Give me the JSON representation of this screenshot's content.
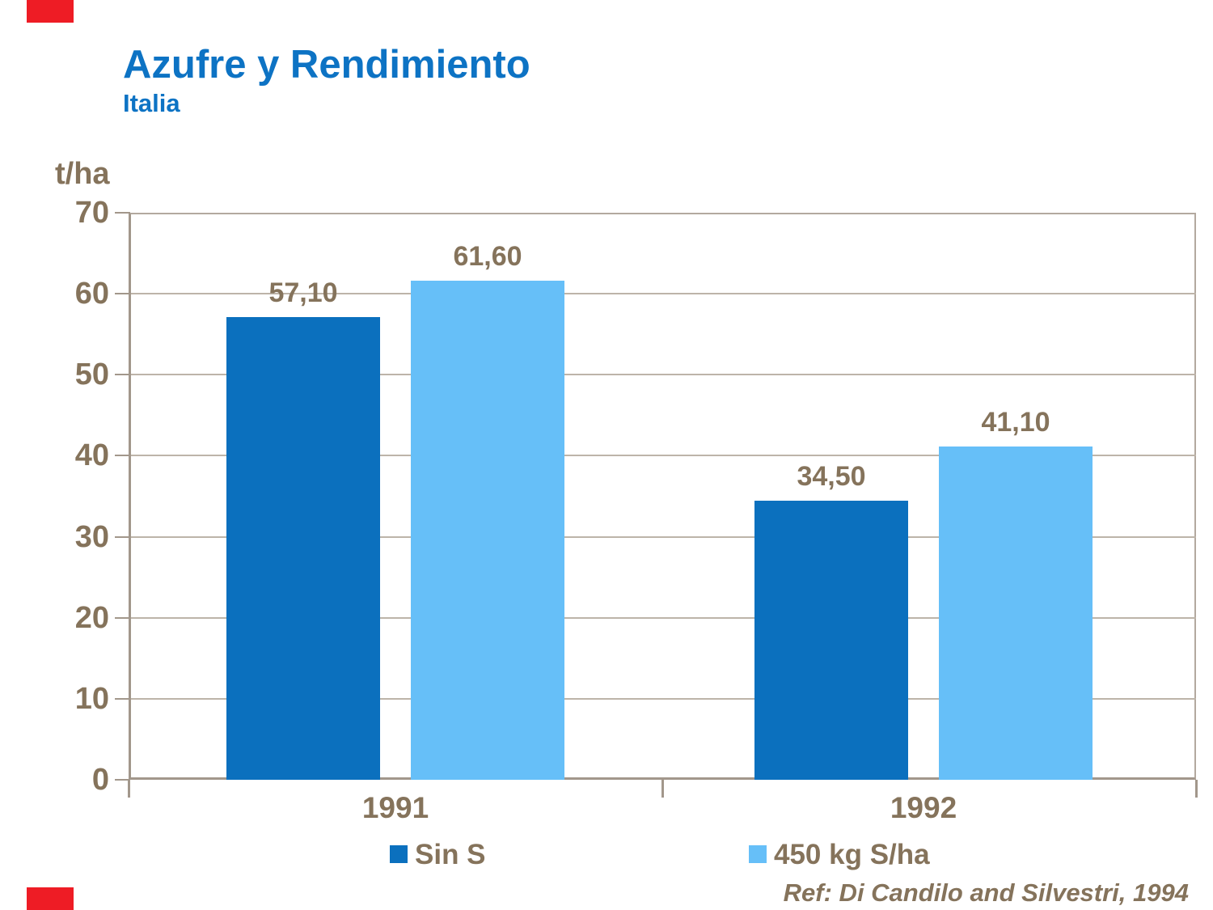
{
  "header": {
    "title": "Azufre y Rendimiento",
    "subtitle": "Italia"
  },
  "chart_data": {
    "type": "bar",
    "title": "Azufre y Rendimiento",
    "subtitle": "Italia",
    "unit_label": "t/ha",
    "categories": [
      "1991",
      "1992"
    ],
    "series": [
      {
        "name": "Sin S",
        "color": "#0b70be",
        "values": [
          57.1,
          34.5
        ],
        "value_labels": [
          "57,10",
          "34,50"
        ]
      },
      {
        "name": "450 kg S/ha",
        "color": "#66bff8",
        "values": [
          61.6,
          41.1
        ],
        "value_labels": [
          "61,60",
          "41,10"
        ]
      }
    ],
    "ylim": [
      0,
      70
    ],
    "yticks": [
      "0",
      "10",
      "20",
      "30",
      "40",
      "50",
      "60",
      "70"
    ],
    "grid": true,
    "legend_position": "bottom"
  },
  "footer": {
    "reference": "Ref: Di Candilo and Silvestri, 1994"
  },
  "colors": {
    "accent_red": "#ee1c25",
    "title_blue": "#0d73c4",
    "series_dark_blue": "#0b70be",
    "series_light_blue": "#66bff8",
    "chart_text_taupe": "#85735b",
    "axis_taupe": "#a2978b",
    "gridline_taupe": "#bdb4a9"
  }
}
